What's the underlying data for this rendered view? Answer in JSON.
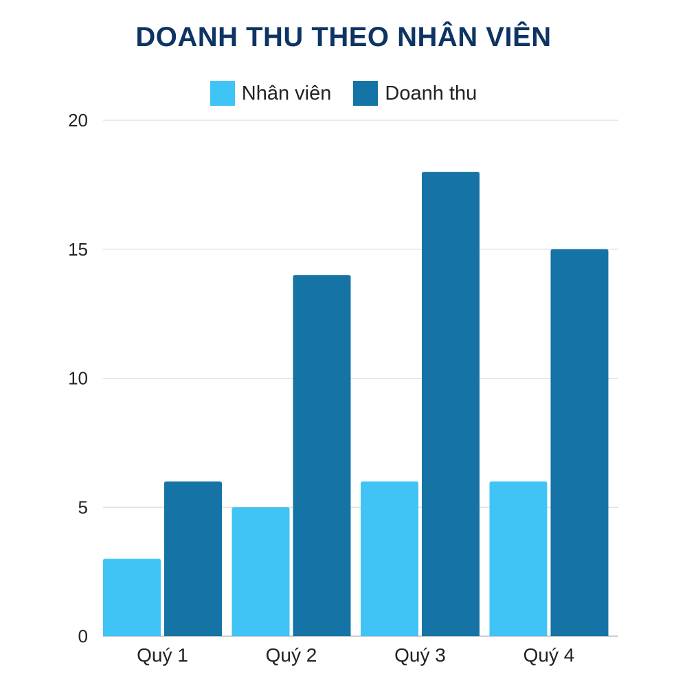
{
  "chart_data": {
    "type": "bar",
    "title": "DOANH THU THEO NHÂN VIÊN",
    "categories": [
      "Quý 1",
      "Quý 2",
      "Quý 3",
      "Quý 4"
    ],
    "series": [
      {
        "name": "Nhân viên",
        "values": [
          3,
          5,
          6,
          6
        ],
        "color": "#40c4f5"
      },
      {
        "name": "Doanh thu",
        "values": [
          6,
          14,
          18,
          15
        ],
        "color": "#1573a5"
      }
    ],
    "xlabel": "",
    "ylabel": "",
    "ylim": [
      0,
      20
    ],
    "yticks": [
      "0",
      "5",
      "10",
      "15",
      "20"
    ],
    "grid": true,
    "legend_position": "top-center"
  }
}
